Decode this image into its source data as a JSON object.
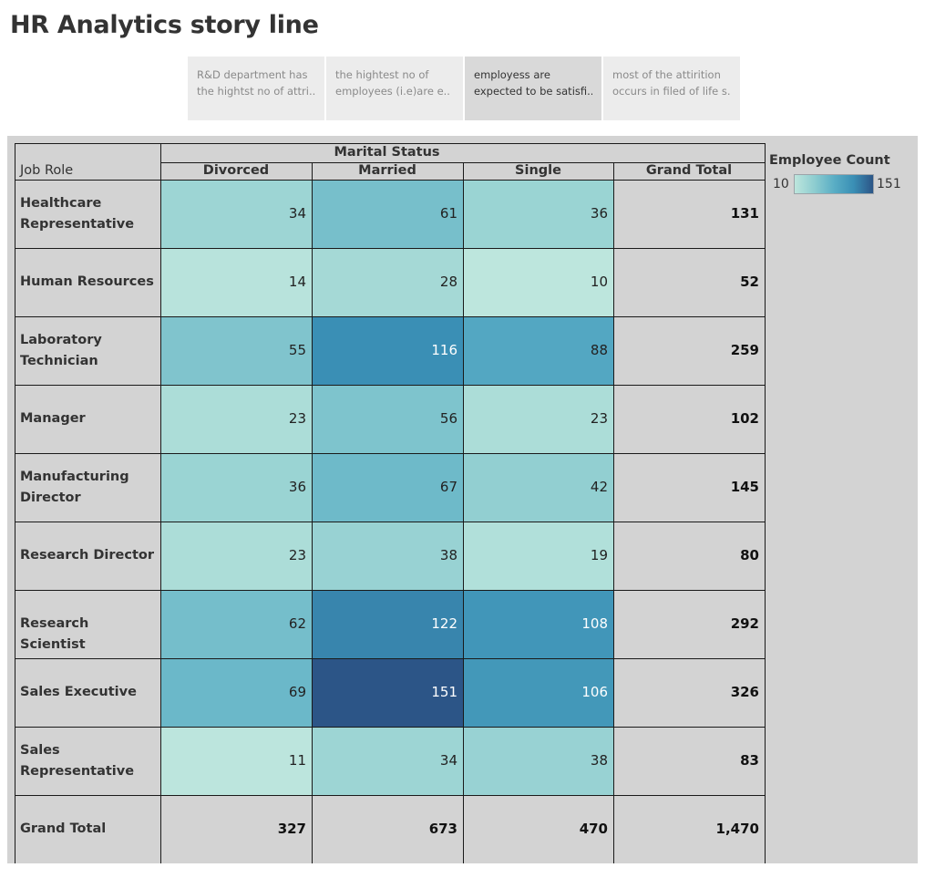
{
  "title": "HR Analytics story line",
  "story_tabs": [
    {
      "line1": "R&D department has",
      "line2": "the hightst no of attri..",
      "active": false
    },
    {
      "line1": "the hightest no of",
      "line2": "employees (i.e)are e..",
      "active": false
    },
    {
      "line1": "employess are",
      "line2": "expected to be satisfi..",
      "active": true
    },
    {
      "line1": "most of the attirition",
      "line2": "occurs in filed of life s..",
      "active": false
    }
  ],
  "table": {
    "column_group_header": "Marital Status",
    "row_header": "Job Role",
    "columns": [
      "Divorced",
      "Married",
      "Single",
      "Grand Total"
    ],
    "rows": [
      {
        "label_lines": [
          "Healthcare",
          "Representative"
        ],
        "values": [
          34,
          61,
          36
        ],
        "total": "131"
      },
      {
        "label_lines": [
          "Human Resources"
        ],
        "values": [
          14,
          28,
          10
        ],
        "total": "52"
      },
      {
        "label_lines": [
          "Laboratory",
          "Technician"
        ],
        "values": [
          55,
          116,
          88
        ],
        "total": "259"
      },
      {
        "label_lines": [
          "Manager"
        ],
        "values": [
          23,
          56,
          23
        ],
        "total": "102"
      },
      {
        "label_lines": [
          "Manufacturing",
          "Director"
        ],
        "values": [
          36,
          67,
          42
        ],
        "total": "145"
      },
      {
        "label_lines": [
          "Research Director"
        ],
        "values": [
          23,
          38,
          19
        ],
        "total": "80"
      },
      {
        "label_lines": [
          "Research Scientist"
        ],
        "values": [
          62,
          122,
          108
        ],
        "total": "292"
      },
      {
        "label_lines": [
          "Sales Executive"
        ],
        "values": [
          69,
          151,
          106
        ],
        "total": "326"
      },
      {
        "label_lines": [
          "Sales",
          "Representative"
        ],
        "values": [
          11,
          34,
          38
        ],
        "total": "83"
      }
    ],
    "grand_total_row": {
      "label": "Grand Total",
      "values": [
        "327",
        "673",
        "470"
      ],
      "total": "1,470"
    }
  },
  "legend": {
    "title": "Employee Count",
    "min": 10,
    "max": 151,
    "min_label": "10",
    "max_label": "151",
    "colors": [
      "#bde6dd",
      "#8ecdd0",
      "#5aaec5",
      "#3a8fb5",
      "#2c5587"
    ]
  },
  "chart_data": {
    "type": "heatmap",
    "title": "",
    "xlabel": "Marital Status",
    "ylabel": "Job Role",
    "x": [
      "Divorced",
      "Married",
      "Single"
    ],
    "y": [
      "Healthcare Representative",
      "Human Resources",
      "Laboratory Technician",
      "Manager",
      "Manufacturing Director",
      "Research Director",
      "Research Scientist",
      "Sales Executive",
      "Sales Representative"
    ],
    "values": [
      [
        34,
        61,
        36
      ],
      [
        14,
        28,
        10
      ],
      [
        55,
        116,
        88
      ],
      [
        23,
        56,
        23
      ],
      [
        36,
        67,
        42
      ],
      [
        23,
        38,
        19
      ],
      [
        62,
        122,
        108
      ],
      [
        69,
        151,
        106
      ],
      [
        11,
        34,
        38
      ]
    ],
    "color_legend": {
      "title": "Employee Count",
      "min": 10,
      "max": 151
    }
  }
}
